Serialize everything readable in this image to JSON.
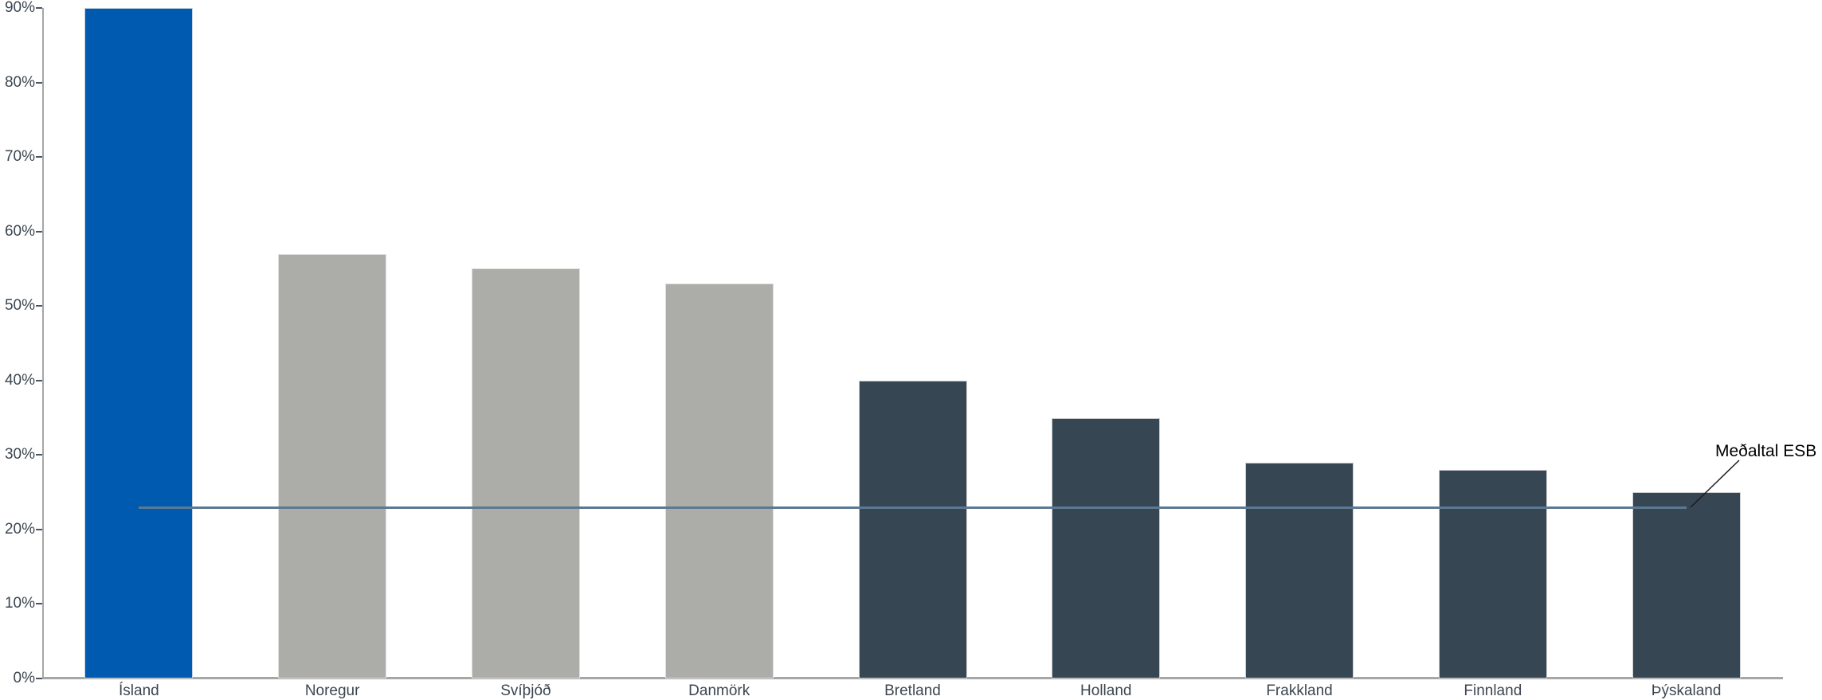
{
  "chart_data": {
    "type": "bar",
    "title": "",
    "xlabel": "",
    "ylabel": "",
    "categories": [
      "Ísland",
      "Noregur",
      "Svíþjóð",
      "Danmörk",
      "Bretland",
      "Holland",
      "Frakkland",
      "Finnland",
      "Þýskaland"
    ],
    "values": [
      90,
      57,
      55,
      53,
      40,
      35,
      29,
      28,
      25
    ],
    "bar_colors": [
      "#005ab0",
      "#acada8",
      "#acada8",
      "#acada8",
      "#374653",
      "#374653",
      "#374653",
      "#374653",
      "#374653"
    ],
    "ylim": [
      0,
      90
    ],
    "ytick_step": 10,
    "ytick_labels": [
      "0%",
      "10%",
      "20%",
      "30%",
      "40%",
      "50%",
      "60%",
      "70%",
      "80%",
      "90%"
    ],
    "grid": false,
    "legend": false,
    "average_line": {
      "label": "Meðaltal ESB",
      "value": 23,
      "color": "#5c7992",
      "spans": "from first category center to last category center"
    },
    "colors": {
      "highlight_bar": "#005ab0",
      "nordic_gray_bar": "#acada8",
      "dark_slate_bar": "#374653",
      "axis": "#a6a6a6",
      "tick": "#4a5561",
      "axis_label_text": "#3c4650",
      "annotation_text": "#000000",
      "background": "#ffffff"
    }
  }
}
